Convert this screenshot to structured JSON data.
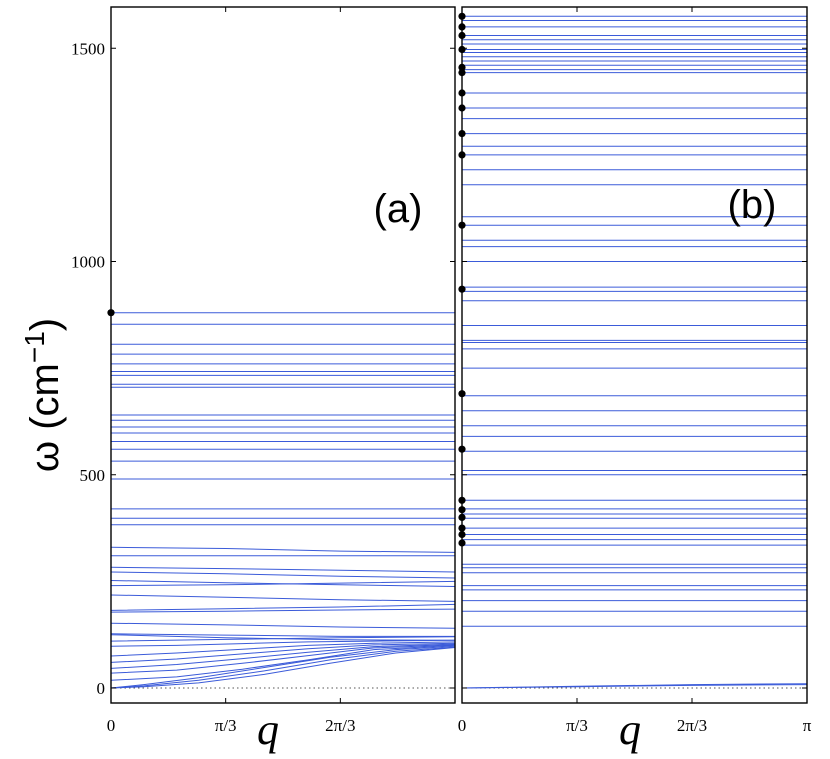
{
  "chart_data": [
    {
      "panel_label": "(a)",
      "type": "line",
      "xlabel": "q",
      "ylabel": "ω (cm⁻¹)",
      "xlim": [
        0,
        3.1416
      ],
      "ylim": [
        -30,
        1600
      ],
      "x_ticks": [
        0,
        1.0472,
        2.0944
      ],
      "x_tick_labels": [
        "0",
        "π/3",
        "2π/3"
      ],
      "y_ticks": [
        0,
        500,
        1000,
        1500
      ],
      "y_tick_labels": [
        "0",
        "500",
        "1000",
        "1500"
      ],
      "grid": false,
      "flat_bands": [
        880,
        853,
        806,
        783,
        760,
        742,
        733,
        712,
        705,
        640,
        628,
        612,
        598,
        578,
        560,
        532,
        490,
        420,
        398,
        383,
        310
      ],
      "dispersive_bands": [
        {
          "q": [
            0,
            1.0472,
            2.0944,
            3.1416
          ],
          "omega": [
            330,
            327,
            321,
            318
          ]
        },
        {
          "q": [
            0,
            1.0472,
            2.0944,
            3.1416
          ],
          "omega": [
            283,
            280,
            276,
            272
          ]
        },
        {
          "q": [
            0,
            1.0472,
            2.0944,
            3.1416
          ],
          "omega": [
            272,
            268,
            262,
            258
          ]
        },
        {
          "q": [
            0,
            1.0472,
            2.0944,
            3.1416
          ],
          "omega": [
            252,
            247,
            242,
            238
          ]
        },
        {
          "q": [
            0,
            1.0472,
            2.0944,
            3.1416
          ],
          "omega": [
            240,
            242,
            246,
            250
          ]
        },
        {
          "q": [
            0,
            1.0472,
            2.0944,
            3.1416
          ],
          "omega": [
            218,
            213,
            207,
            203
          ]
        },
        {
          "q": [
            0,
            1.0472,
            2.0944,
            3.1416
          ],
          "omega": [
            182,
            186,
            190,
            196
          ]
        },
        {
          "q": [
            0,
            1.0472,
            2.0944,
            3.1416
          ],
          "omega": [
            178,
            180,
            183,
            185
          ]
        },
        {
          "q": [
            0,
            1.0472,
            2.0944,
            3.1416
          ],
          "omega": [
            152,
            148,
            143,
            140
          ]
        },
        {
          "q": [
            0,
            1.0472,
            2.0944,
            3.1416
          ],
          "omega": [
            127,
            124,
            121,
            121
          ]
        },
        {
          "q": [
            0,
            1.0472,
            2.0944,
            3.1416
          ],
          "omega": [
            125,
            118,
            113,
            112
          ]
        },
        {
          "q": [
            0,
            1.0472,
            2.0944,
            3.1416
          ],
          "omega": [
            110,
            114,
            118,
            120
          ]
        },
        {
          "q": [
            0,
            0.6,
            1.2,
            1.8,
            2.4,
            3.1416
          ],
          "omega": [
            98,
            100,
            104,
            108,
            110,
            112
          ]
        },
        {
          "q": [
            0,
            0.6,
            1.2,
            1.8,
            2.4,
            3.1416
          ],
          "omega": [
            75,
            82,
            91,
            100,
            105,
            108
          ]
        },
        {
          "q": [
            0,
            0.6,
            1.2,
            1.8,
            2.4,
            3.1416
          ],
          "omega": [
            60,
            68,
            80,
            92,
            101,
            105
          ]
        },
        {
          "q": [
            0,
            0.6,
            1.2,
            1.8,
            2.4,
            3.1416
          ],
          "omega": [
            46,
            55,
            69,
            84,
            97,
            103
          ]
        },
        {
          "q": [
            0,
            0.6,
            1.2,
            1.8,
            2.4,
            3.1416
          ],
          "omega": [
            35,
            42,
            58,
            76,
            94,
            101
          ]
        },
        {
          "q": [
            0,
            0.6,
            1.2,
            1.8,
            2.4,
            3.1416
          ],
          "omega": [
            18,
            26,
            44,
            66,
            90,
            100
          ]
        },
        {
          "q": [
            0,
            0.3,
            0.8,
            1.4,
            2.0,
            2.6,
            3.1416
          ],
          "omega": [
            0,
            8,
            24,
            48,
            72,
            90,
            98
          ]
        },
        {
          "q": [
            0,
            0.3,
            0.8,
            1.4,
            2.0,
            2.6,
            3.1416
          ],
          "omega": [
            0,
            5,
            18,
            40,
            66,
            86,
            96
          ]
        },
        {
          "q": [
            0,
            0.3,
            0.8,
            1.4,
            2.0,
            2.6,
            3.1416
          ],
          "omega": [
            0,
            3,
            12,
            32,
            58,
            82,
            95
          ]
        }
      ],
      "zone_center_points": [
        880
      ]
    },
    {
      "panel_label": "(b)",
      "type": "line",
      "xlabel": "q",
      "xlim": [
        0,
        3.1416
      ],
      "ylim": [
        -30,
        1600
      ],
      "x_ticks": [
        0,
        1.0472,
        2.0944,
        3.1416
      ],
      "x_tick_labels": [
        "0",
        "π/3",
        "2π/3",
        "π"
      ],
      "grid": false,
      "flat_bands": [
        1575,
        1565,
        1550,
        1530,
        1520,
        1510,
        1497,
        1490,
        1480,
        1470,
        1460,
        1450,
        1443,
        1395,
        1360,
        1335,
        1300,
        1270,
        1250,
        1215,
        1180,
        1105,
        1085,
        1050,
        1035,
        1000,
        940,
        930,
        908,
        850,
        815,
        810,
        795,
        750,
        685,
        650,
        615,
        590,
        555,
        510,
        500,
        440,
        420,
        408,
        398,
        375,
        360,
        348,
        335,
        290,
        282,
        270,
        240,
        230,
        205,
        180,
        145
      ],
      "dispersive_bands": [
        {
          "q": [
            0,
            1.0472,
            2.0944,
            3.1416
          ],
          "omega": [
            0,
            4,
            8,
            10
          ]
        },
        {
          "q": [
            0,
            1.0472,
            2.0944,
            3.1416
          ],
          "omega": [
            0,
            3,
            6,
            8
          ]
        }
      ],
      "zone_center_points": [
        1575,
        1550,
        1530,
        1497,
        1455,
        1443,
        1395,
        1360,
        1300,
        1250,
        1085,
        935,
        690,
        560,
        440,
        418,
        400,
        375,
        360,
        340
      ]
    }
  ]
}
